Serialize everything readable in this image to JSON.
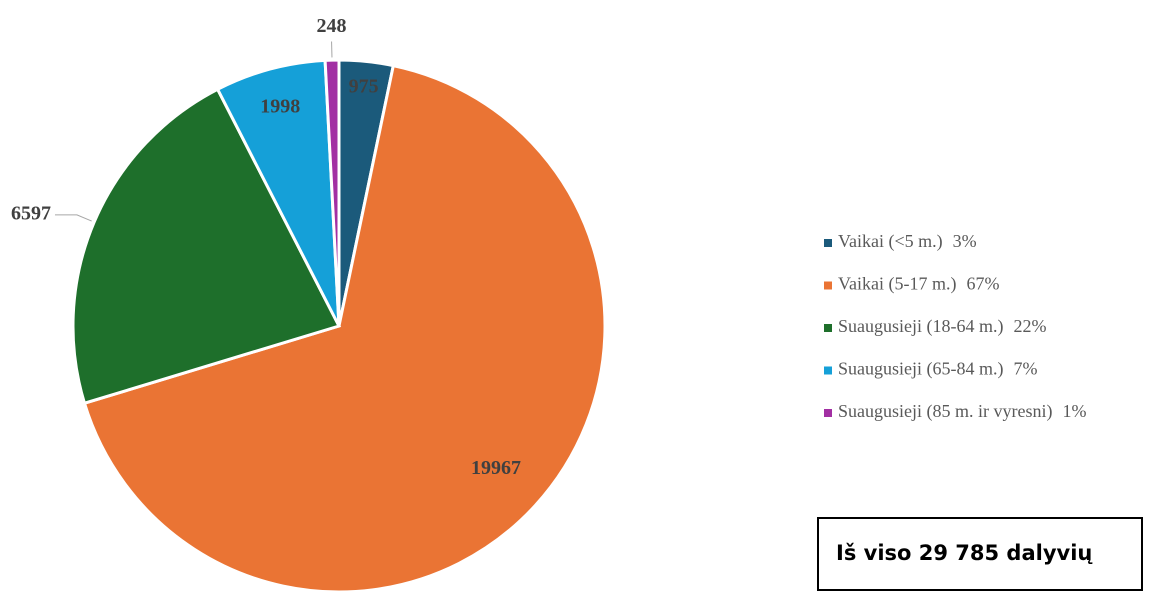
{
  "chart_data": {
    "type": "pie",
    "categories": [
      "Vaikai (<5 m.)",
      "Vaikai (5-17 m.)",
      "Suaugusieji (18-64 m.)",
      "Suaugusieji (65-84 m.)",
      "Suaugusieji (85 m. ir vyresni)"
    ],
    "values": [
      975,
      19967,
      6597,
      1998,
      248
    ],
    "legend_percent_labels": [
      "3%",
      "67%",
      "22%",
      "7%",
      "1%"
    ],
    "colors": [
      "#1b5a7b",
      "#ea7434",
      "#1e6f2b",
      "#15a0d8",
      "#a22fa3"
    ],
    "legend": "right",
    "annotation": "Iš viso 29 785 dalyvių"
  }
}
